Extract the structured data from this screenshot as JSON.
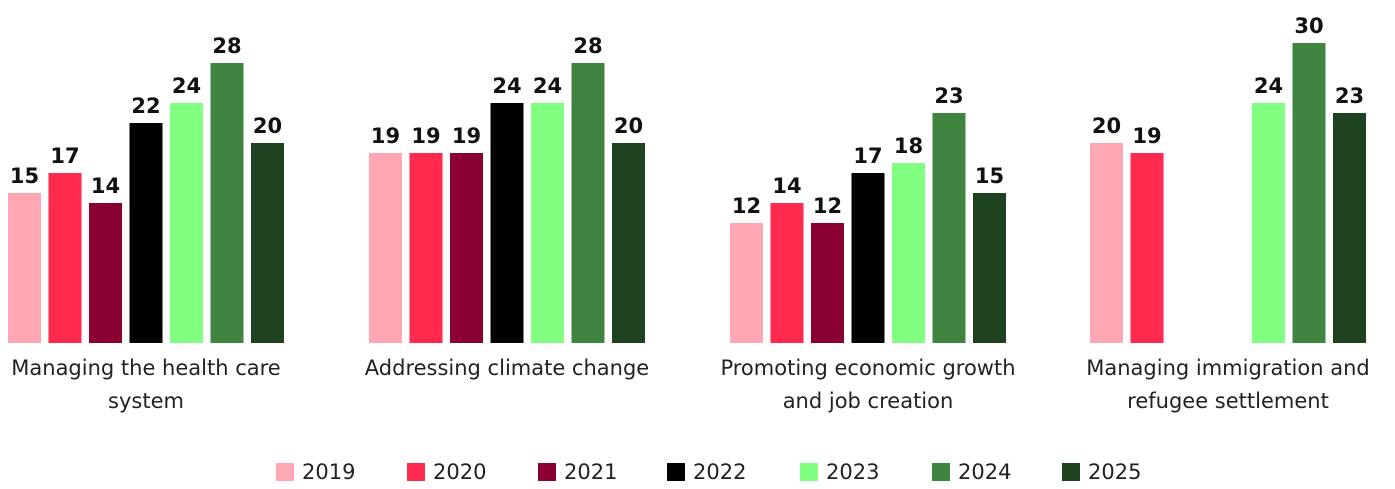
{
  "chart_data": {
    "type": "bar",
    "categories": [
      "Managing the health care system",
      "Addressing climate change",
      "Promoting economic growth and job creation",
      "Managing immigration and refugee settlement"
    ],
    "series": [
      {
        "name": "2019",
        "color": "#ffa8b4",
        "values": [
          15,
          19,
          12,
          20
        ]
      },
      {
        "name": "2020",
        "color": "#ff2a4d",
        "values": [
          17,
          19,
          14,
          19
        ]
      },
      {
        "name": "2021",
        "color": "#8a0033",
        "values": [
          14,
          19,
          12,
          null
        ]
      },
      {
        "name": "2022",
        "color": "#000000",
        "values": [
          22,
          24,
          17,
          null
        ]
      },
      {
        "name": "2023",
        "color": "#80ff80",
        "values": [
          24,
          24,
          18,
          24
        ]
      },
      {
        "name": "2024",
        "color": "#3f8540",
        "values": [
          28,
          28,
          23,
          30
        ]
      },
      {
        "name": "2025",
        "color": "#1e4220",
        "values": [
          20,
          20,
          15,
          23
        ]
      }
    ],
    "ylim": [
      0,
      34
    ]
  }
}
